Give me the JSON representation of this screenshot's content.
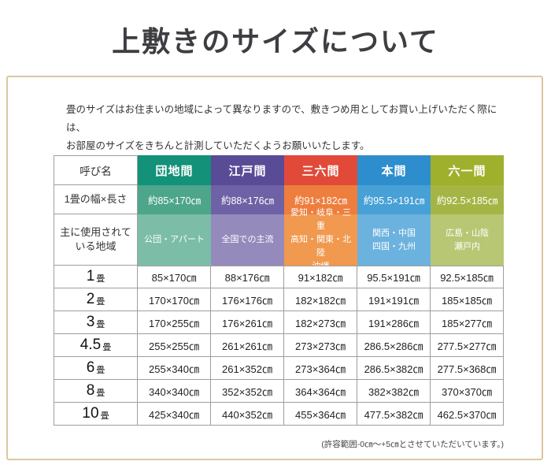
{
  "page": {
    "title": "上敷きのサイズについて",
    "intro_line1": "畳のサイズはお住まいの地域によって異なりますので、敷きつめ用としてお買い上げいただく際には、",
    "intro_line2": "お部屋のサイズをきちんと計測していただくようお願いいたします。",
    "footnote": "(許容範囲-0㎝～+5㎝とさせていただいています。)"
  },
  "table": {
    "corner_label": "呼び名",
    "size_row_label": "1畳の幅×長さ",
    "region_row_label": "主に使用されている地域",
    "columns": [
      {
        "name": "団地間",
        "size": "約85×170㎝",
        "region": "公団・アパート",
        "colors": {
          "header": "#139179",
          "size": "#4da58a",
          "region": "#7cbda7"
        }
      },
      {
        "name": "江戸間",
        "size": "約88×176㎝",
        "region": "全国での主流",
        "colors": {
          "header": "#5a4b97",
          "size": "#6f61a5",
          "region": "#958abc"
        }
      },
      {
        "name": "三六間",
        "size": "約91×182㎝",
        "region": "愛知・岐阜・三重\n高知・関東・北陸\n沖縄",
        "colors": {
          "header": "#e14a39",
          "size": "#ed7e3e",
          "region": "#f0994f"
        }
      },
      {
        "name": "本間",
        "size": "約95.5×191㎝",
        "region": "関西・中国\n四国・九州",
        "colors": {
          "header": "#2e8ecd",
          "size": "#47a0d6",
          "region": "#6cb2de"
        }
      },
      {
        "name": "六一間",
        "size": "約92.5×185㎝",
        "region": "広島・山陰\n瀬戸内",
        "colors": {
          "header": "#9fb02c",
          "size": "#a5b545",
          "region": "#b7c774"
        }
      }
    ],
    "rows": [
      {
        "num": "1",
        "unit": "畳",
        "values": [
          "85×170㎝",
          "88×176㎝",
          "91×182㎝",
          "95.5×191㎝",
          "92.5×185㎝"
        ]
      },
      {
        "num": "2",
        "unit": "畳",
        "values": [
          "170×170㎝",
          "176×176㎝",
          "182×182㎝",
          "191×191㎝",
          "185×185㎝"
        ]
      },
      {
        "num": "3",
        "unit": "畳",
        "values": [
          "170×255㎝",
          "176×261㎝",
          "182×273㎝",
          "191×286㎝",
          "185×277㎝"
        ]
      },
      {
        "num": "4.5",
        "unit": "畳",
        "values": [
          "255×255㎝",
          "261×261㎝",
          "273×273㎝",
          "286.5×286㎝",
          "277.5×277㎝"
        ]
      },
      {
        "num": "6",
        "unit": "畳",
        "values": [
          "255×340㎝",
          "261×352㎝",
          "273×364㎝",
          "286.5×382㎝",
          "277.5×368㎝"
        ]
      },
      {
        "num": "8",
        "unit": "畳",
        "values": [
          "340×340㎝",
          "352×352㎝",
          "364×364㎝",
          "382×382㎝",
          "370×370㎝"
        ]
      },
      {
        "num": "10",
        "unit": "畳",
        "values": [
          "425×340㎝",
          "440×352㎝",
          "455×364㎝",
          "477.5×382㎝",
          "462.5×370㎝"
        ]
      }
    ]
  },
  "chart_data": {
    "type": "table",
    "title": "上敷きのサイズについて",
    "columns": [
      "呼び名",
      "団地間",
      "江戸間",
      "三六間",
      "本間",
      "六一間"
    ],
    "rows": [
      [
        "1畳の幅×長さ",
        "約85×170㎝",
        "約88×176㎝",
        "約91×182㎝",
        "約95.5×191㎝",
        "約92.5×185㎝"
      ],
      [
        "主に使用されている地域",
        "公団・アパート",
        "全国での主流",
        "愛知・岐阜・三重 高知・関東・北陸 沖縄",
        "関西・中国 四国・九州",
        "広島・山陰 瀬戸内"
      ],
      [
        "1畳",
        "85×170㎝",
        "88×176㎝",
        "91×182㎝",
        "95.5×191㎝",
        "92.5×185㎝"
      ],
      [
        "2畳",
        "170×170㎝",
        "176×176㎝",
        "182×182㎝",
        "191×191㎝",
        "185×185㎝"
      ],
      [
        "3畳",
        "170×255㎝",
        "176×261㎝",
        "182×273㎝",
        "191×286㎝",
        "185×277㎝"
      ],
      [
        "4.5畳",
        "255×255㎝",
        "261×261㎝",
        "273×273㎝",
        "286.5×286㎝",
        "277.5×277㎝"
      ],
      [
        "6畳",
        "255×340㎝",
        "261×352㎝",
        "273×364㎝",
        "286.5×382㎝",
        "277.5×368㎝"
      ],
      [
        "8畳",
        "340×340㎝",
        "352×352㎝",
        "364×364㎝",
        "382×382㎝",
        "370×370㎝"
      ],
      [
        "10畳",
        "425×340㎝",
        "440×352㎝",
        "455×364㎝",
        "477.5×382㎝",
        "462.5×370㎝"
      ]
    ]
  }
}
